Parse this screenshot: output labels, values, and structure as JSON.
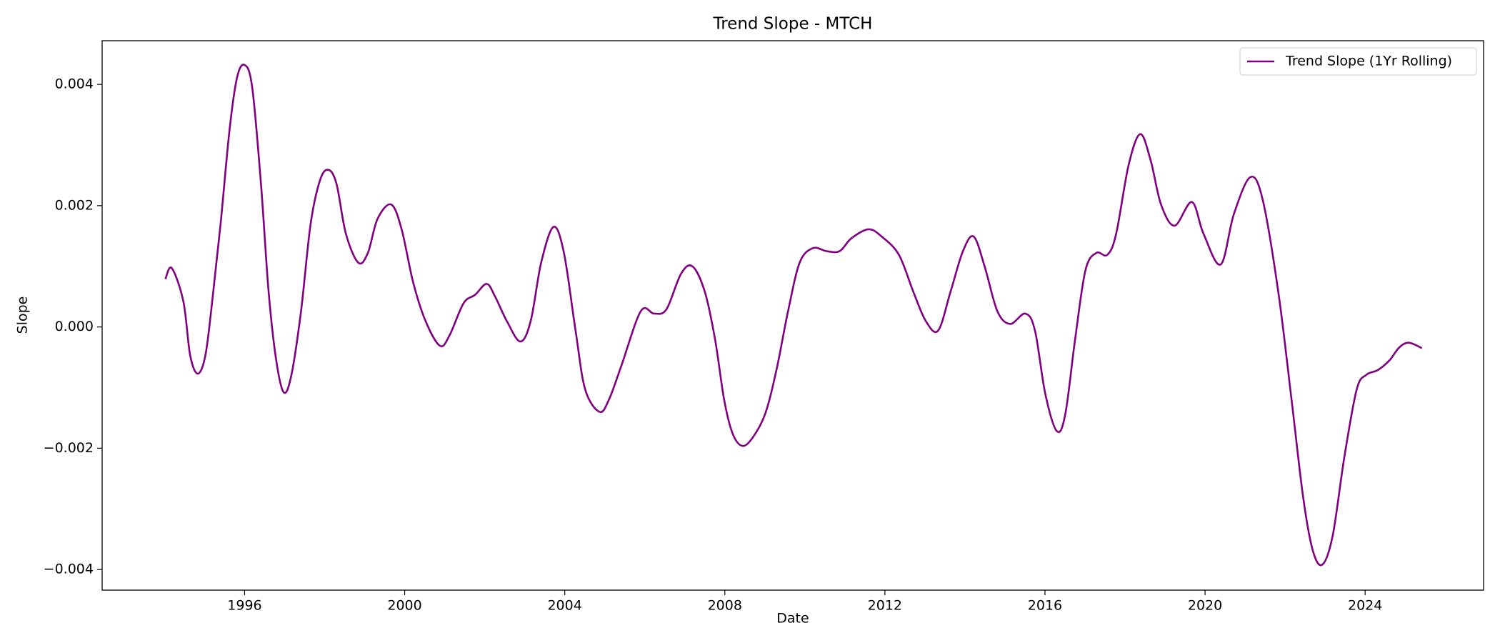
{
  "chart_data": {
    "type": "line",
    "title": "Trend Slope - MTCH",
    "xlabel": "Date",
    "ylabel": "Slope",
    "legend": "upper right",
    "grid": false,
    "xlim": [
      1992.44,
      2026.96
    ],
    "xticks": [
      1996,
      2000,
      2004,
      2008,
      2012,
      2016,
      2020,
      2024
    ],
    "ylim": [
      -0.00434,
      0.00472
    ],
    "yticks": [
      {
        "value": -0.004,
        "label": "−0.004"
      },
      {
        "value": -0.002,
        "label": "−0.002"
      },
      {
        "value": 0,
        "label": "0.000"
      },
      0.002,
      0.004
    ],
    "x": [
      1994.02,
      1994.18,
      1994.47,
      1994.64,
      1994.83,
      1995.02,
      1995.19,
      1995.4,
      1995.62,
      1995.81,
      1996.0,
      1996.19,
      1996.41,
      1996.6,
      1996.79,
      1996.98,
      1997.17,
      1997.41,
      1997.65,
      1997.89,
      1998.1,
      1998.3,
      1998.53,
      1998.84,
      1999.08,
      1999.32,
      1999.66,
      1999.92,
      2000.21,
      2000.52,
      2000.88,
      2001.12,
      2001.47,
      2001.76,
      2002.05,
      2002.26,
      2002.55,
      2002.89,
      2003.15,
      2003.41,
      2003.72,
      2003.98,
      2004.27,
      2004.51,
      2004.87,
      2005.11,
      2005.42,
      2005.9,
      2006.23,
      2006.54,
      2006.9,
      2007.19,
      2007.5,
      2007.76,
      2007.98,
      2008.19,
      2008.43,
      2008.69,
      2009.01,
      2009.29,
      2009.58,
      2009.87,
      2010.2,
      2010.54,
      2010.87,
      2011.16,
      2011.59,
      2011.92,
      2012.35,
      2012.71,
      2013.02,
      2013.33,
      2013.64,
      2013.95,
      2014.22,
      2014.5,
      2014.81,
      2015.13,
      2015.51,
      2015.75,
      2016.01,
      2016.3,
      2016.51,
      2016.75,
      2017.01,
      2017.28,
      2017.56,
      2017.78,
      2018.09,
      2018.38,
      2018.64,
      2018.9,
      2019.24,
      2019.67,
      2019.96,
      2020.39,
      2020.72,
      2021.13,
      2021.44,
      2021.83,
      2022.16,
      2022.45,
      2022.69,
      2022.93,
      2023.19,
      2023.48,
      2023.79,
      2024.03,
      2024.32,
      2024.61,
      2024.85,
      2025.09,
      2025.42
    ],
    "series": [
      {
        "name": "Trend Slope (1Yr Rolling)",
        "color": "#800080",
        "values": [
          0.00079,
          0.00097,
          0.00042,
          -0.00047,
          -0.00077,
          -0.00047,
          0.00042,
          0.0017,
          0.00323,
          0.00411,
          0.00432,
          0.00395,
          0.00235,
          0.00058,
          -0.00055,
          -0.00108,
          -0.00079,
          0.00026,
          0.0017,
          0.00243,
          0.00259,
          0.00235,
          0.00154,
          0.00106,
          0.00122,
          0.00178,
          0.00202,
          0.00162,
          0.00074,
          0.0001,
          -0.00031,
          -0.00014,
          0.00039,
          0.00053,
          0.00071,
          0.0005,
          0.0001,
          -0.00024,
          0.0001,
          0.00106,
          0.00165,
          0.00122,
          -6e-05,
          -0.00103,
          -0.0014,
          -0.00119,
          -0.00063,
          0.00026,
          0.00022,
          0.00029,
          0.00087,
          0.001,
          0.00058,
          -0.00022,
          -0.00119,
          -0.00175,
          -0.00196,
          -0.00183,
          -0.00143,
          -0.00071,
          0.00026,
          0.00106,
          0.0013,
          0.00125,
          0.00125,
          0.00146,
          0.00161,
          0.00149,
          0.00119,
          0.00058,
          0.0001,
          -6e-05,
          0.00058,
          0.00125,
          0.00149,
          0.00098,
          0.00026,
          5e-05,
          0.00022,
          -6e-05,
          -0.00111,
          -0.00172,
          -0.00143,
          -0.00022,
          0.00093,
          0.00122,
          0.00119,
          0.00154,
          0.00267,
          0.00318,
          0.00275,
          0.00202,
          0.00167,
          0.00206,
          0.00154,
          0.00103,
          0.00186,
          0.00247,
          0.0021,
          0.00058,
          -0.00119,
          -0.0028,
          -0.00368,
          -0.00392,
          -0.00344,
          -0.00215,
          -0.00103,
          -0.00079,
          -0.00071,
          -0.00055,
          -0.00034,
          -0.00026,
          -0.00035
        ]
      }
    ]
  }
}
